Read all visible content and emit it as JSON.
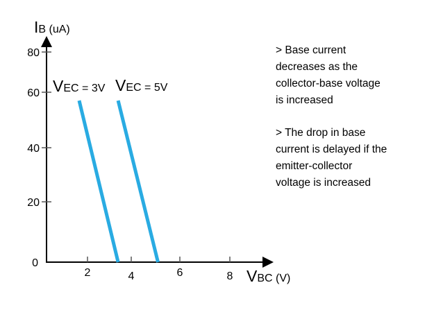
{
  "chart_data": {
    "type": "line",
    "title": "",
    "ylabel": {
      "main": "I",
      "sub": "B",
      "unit": " (uA)"
    },
    "xlabel": {
      "main": "V",
      "sub": "BC",
      "unit": " (V)"
    },
    "x_ticks": [
      "2",
      "4",
      "6",
      "8"
    ],
    "y_ticks": [
      "0",
      "20",
      "40",
      "60",
      "80"
    ],
    "xlim": [
      0,
      9
    ],
    "ylim": [
      0,
      85
    ],
    "grid": false,
    "line_color": "#29abe2",
    "series": [
      {
        "name": {
          "main": "V",
          "sub": "EC",
          "rest": " = 3V"
        },
        "x": [
          1.6,
          3.4
        ],
        "y": [
          57,
          0
        ]
      },
      {
        "name": {
          "main": "V",
          "sub": "EC",
          "rest": " = 5V"
        },
        "x": [
          3.4,
          5.1
        ],
        "y": [
          57,
          0
        ]
      }
    ]
  },
  "notes": [
    [
      "> Base current",
      "decreases as the",
      "collector-base voltage",
      "is increased"
    ],
    [
      "> The drop in base",
      "current is delayed if the",
      "emitter-collector",
      "voltage is increased"
    ]
  ]
}
